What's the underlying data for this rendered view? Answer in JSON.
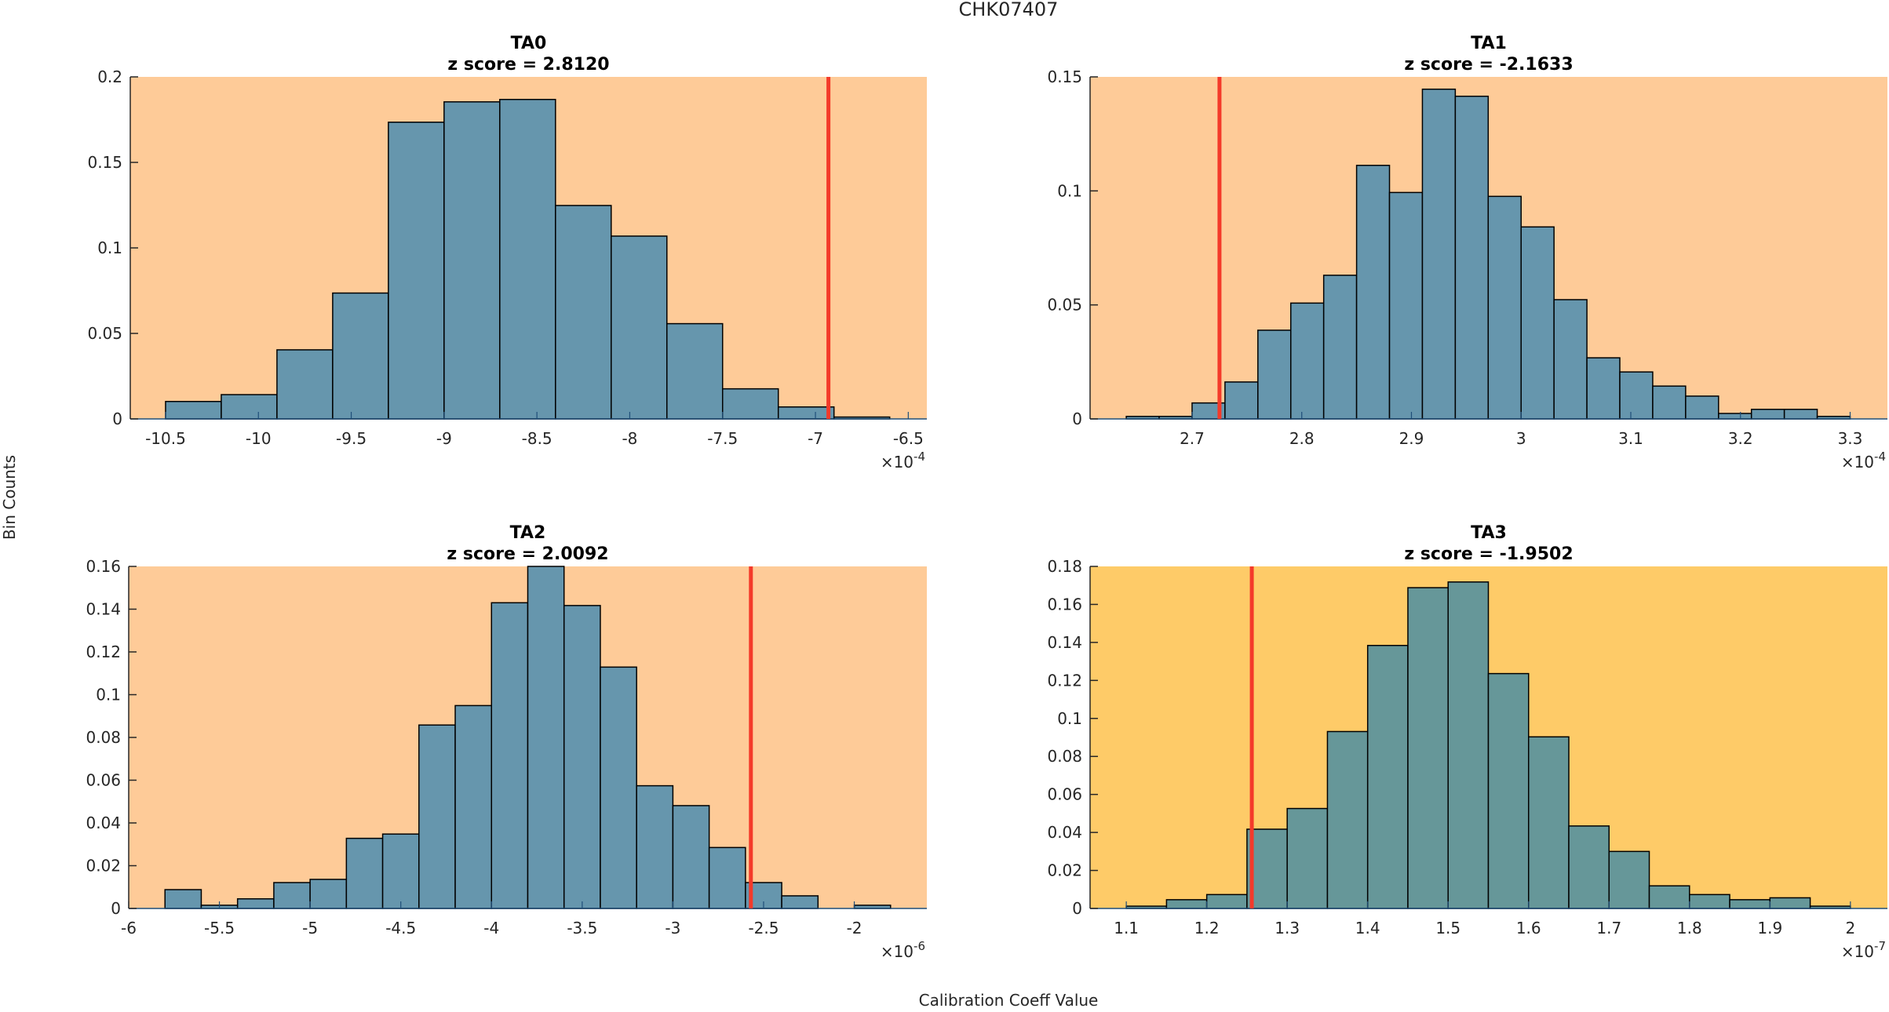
{
  "figure": {
    "title": "CHK07407",
    "ylabel": "Bin Counts",
    "xlabel": "Calibration Coeff Value"
  },
  "colors": {
    "bar_fill_default": "#6696AD",
    "bar_fill_ta3": "#669799",
    "bar_edge": "#000000",
    "background_default": "#FECB98",
    "background_ta3": "#FECB68",
    "marker_line": "#F43A2A",
    "axis": "#262626"
  },
  "chart_data": [
    {
      "type": "bar",
      "panel": "top-left",
      "title": "TA0",
      "subtitle": "z score = 2.8120",
      "xlabel": "",
      "ylabel": "",
      "x_exponent_label": "×10^-4",
      "x_exponent": "-4",
      "bin_start": -10.5,
      "bin_width": 0.3,
      "values": [
        0.0102,
        0.0142,
        0.0404,
        0.0736,
        0.1735,
        0.1854,
        0.1868,
        0.1248,
        0.1069,
        0.0557,
        0.0176,
        0.007,
        0.0011
      ],
      "marker_x": -6.93,
      "xlim": [
        -10.69,
        -6.4
      ],
      "ylim": [
        0,
        0.2
      ],
      "xticks": [
        -10.5,
        -10,
        -9.5,
        -9,
        -8.5,
        -8,
        -7.5,
        -7,
        -6.5
      ],
      "xtick_labels": [
        "-10.5",
        "-10",
        "-9.5",
        "-9",
        "-8.5",
        "-8",
        "-7.5",
        "-7",
        "-6.5"
      ],
      "yticks": [
        0,
        0.05,
        0.1,
        0.15,
        0.2
      ],
      "ytick_labels": [
        "0",
        "0.05",
        "0.1",
        "0.15",
        "0.2"
      ],
      "style": "default",
      "grid": false
    },
    {
      "type": "bar",
      "panel": "top-right",
      "title": "TA1",
      "subtitle": "z score = -2.1633",
      "xlabel": "",
      "ylabel": "",
      "x_exponent_label": "×10^-4",
      "x_exponent": "-4",
      "bin_start": 2.64,
      "bin_width": 0.03,
      "values": [
        0.0011,
        0.0011,
        0.007,
        0.0162,
        0.0389,
        0.0508,
        0.063,
        0.1112,
        0.0993,
        0.1446,
        0.1415,
        0.0976,
        0.0842,
        0.0523,
        0.0268,
        0.0206,
        0.0144,
        0.01,
        0.0024,
        0.0042,
        0.0042,
        0.0011
      ],
      "marker_x": 2.725,
      "xlim": [
        2.607,
        3.334
      ],
      "ylim": [
        0,
        0.15
      ],
      "xticks": [
        2.7,
        2.8,
        2.9,
        3.0,
        3.1,
        3.2,
        3.3
      ],
      "xtick_labels": [
        "2.7",
        "2.8",
        "2.9",
        "3",
        "3.1",
        "3.2",
        "3.3"
      ],
      "yticks": [
        0,
        0.05,
        0.1,
        0.15
      ],
      "ytick_labels": [
        "0",
        "0.05",
        "0.1",
        "0.15"
      ],
      "style": "default",
      "grid": false
    },
    {
      "type": "bar",
      "panel": "bottom-left",
      "title": "TA2",
      "subtitle": "z score = 2.0092",
      "xlabel": "",
      "ylabel": "",
      "x_exponent_label": "×10^-6",
      "x_exponent": "-6",
      "bin_start": -5.8,
      "bin_width": 0.2,
      "values": [
        0.0088,
        0.0015,
        0.0045,
        0.0121,
        0.0136,
        0.0328,
        0.0348,
        0.0858,
        0.0949,
        0.143,
        0.16,
        0.1417,
        0.1129,
        0.0574,
        0.0481,
        0.0285,
        0.0121,
        0.0059,
        0.0,
        0.0015
      ],
      "marker_x": -2.57,
      "xlim": [
        -6.0,
        -1.6
      ],
      "ylim": [
        0,
        0.16
      ],
      "xticks": [
        -6,
        -5.5,
        -5,
        -4.5,
        -4,
        -3.5,
        -3,
        -2.5,
        -2
      ],
      "xtick_labels": [
        "-6",
        "-5.5",
        "-5",
        "-4.5",
        "-4",
        "-3.5",
        "-3",
        "-2.5",
        "-2"
      ],
      "yticks": [
        0,
        0.02,
        0.04,
        0.06,
        0.08,
        0.1,
        0.12,
        0.14,
        0.16
      ],
      "ytick_labels": [
        "0",
        "0.02",
        "0.04",
        "0.06",
        "0.08",
        "0.1",
        "0.12",
        "0.14",
        "0.16"
      ],
      "style": "default",
      "grid": false
    },
    {
      "type": "bar",
      "panel": "bottom-right",
      "title": "TA3",
      "subtitle": "z score = -1.9502",
      "xlabel": "",
      "ylabel": "",
      "x_exponent_label": "×10^-7",
      "x_exponent": "-7",
      "bin_start": 1.1,
      "bin_width": 0.05,
      "values": [
        0.0012,
        0.0046,
        0.0073,
        0.0417,
        0.0526,
        0.0931,
        0.1384,
        0.1688,
        0.1718,
        0.1236,
        0.0903,
        0.0434,
        0.03,
        0.0119,
        0.0073,
        0.0046,
        0.0056,
        0.0012
      ],
      "marker_x": 1.256,
      "xlim": [
        1.055,
        2.046
      ],
      "ylim": [
        0,
        0.18
      ],
      "xticks": [
        1.1,
        1.2,
        1.3,
        1.4,
        1.5,
        1.6,
        1.7,
        1.8,
        1.9,
        2.0
      ],
      "xtick_labels": [
        "1.1",
        "1.2",
        "1.3",
        "1.4",
        "1.5",
        "1.6",
        "1.7",
        "1.8",
        "1.9",
        "2"
      ],
      "yticks": [
        0,
        0.02,
        0.04,
        0.06,
        0.08,
        0.1,
        0.12,
        0.14,
        0.16,
        0.18
      ],
      "ytick_labels": [
        "0",
        "0.02",
        "0.04",
        "0.06",
        "0.08",
        "0.1",
        "0.12",
        "0.14",
        "0.16",
        "0.18"
      ],
      "style": "ta3",
      "grid": false
    }
  ]
}
